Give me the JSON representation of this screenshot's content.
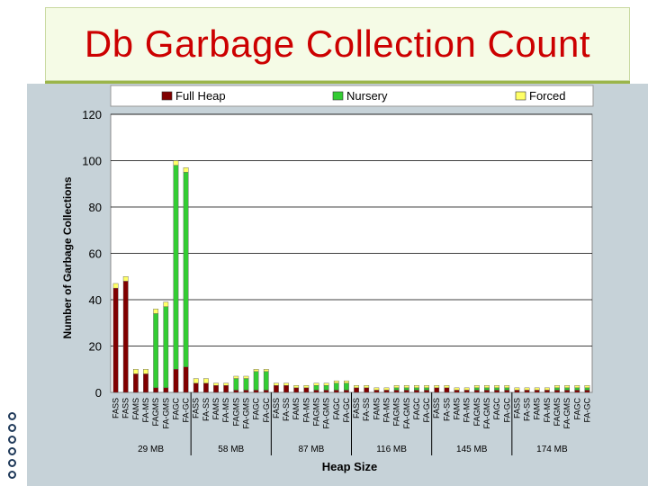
{
  "slide": {
    "title": "Db Garbage Collection Count",
    "colors": {
      "background": "#ffffff",
      "title": "#cc0000",
      "chart_bg": "#c6d2d8",
      "accent": "#9bb54a"
    }
  },
  "chart_data": {
    "type": "bar",
    "stacked": true,
    "title": "",
    "xlabel": "Heap Size",
    "ylabel": "Number of Garbage Collections",
    "ylim": [
      0,
      120
    ],
    "yticks": [
      0,
      20,
      40,
      60,
      80,
      100,
      120
    ],
    "grid": true,
    "legend_position": "top",
    "groups": [
      "29 MB",
      "58 MB",
      "87 MB",
      "116 MB",
      "145 MB",
      "174 MB"
    ],
    "categories": [
      [
        "FASS",
        "FASS",
        "FAMS",
        "FA-MS",
        "FAGMS",
        "FA-GMS",
        "FAGC",
        "FA-GC"
      ],
      [
        "FASS",
        "FA-SS",
        "FAMS",
        "FA-MS",
        "FAGMS",
        "FA-GMS",
        "FAGC",
        "FA-GC"
      ],
      [
        "FASS",
        "FA-SS",
        "FAMS",
        "FA-MS",
        "FAGMS",
        "FA-GMS",
        "FAGC",
        "FA-GC"
      ],
      [
        "FASS",
        "FA-SS",
        "FAMS",
        "FA-MS",
        "FAGMS",
        "FA-GMS",
        "FAGC",
        "FA-GC"
      ],
      [
        "FASS",
        "FA-SS",
        "FAMS",
        "FA-MS",
        "FAGMS",
        "FA-GMS",
        "FAGC",
        "FA-GC"
      ],
      [
        "FASS",
        "FA-SS",
        "FAMS",
        "FA-MS",
        "FAGMS",
        "FA-GMS",
        "FAGC",
        "FA-GC"
      ]
    ],
    "series": [
      {
        "name": "Full Heap",
        "color": "#800000",
        "values": [
          [
            45,
            48,
            8,
            8,
            2,
            2,
            10,
            11
          ],
          [
            4,
            4,
            3,
            3,
            1,
            1,
            1,
            1
          ],
          [
            3,
            3,
            2,
            2,
            1,
            1,
            1,
            1
          ],
          [
            2,
            2,
            1,
            1,
            1,
            1,
            1,
            1
          ],
          [
            2,
            2,
            1,
            1,
            1,
            1,
            1,
            1
          ],
          [
            1,
            1,
            1,
            1,
            1,
            1,
            1,
            1
          ]
        ]
      },
      {
        "name": "Nursery",
        "color": "#33cc33",
        "values": [
          [
            0,
            0,
            0,
            0,
            32,
            35,
            88,
            84
          ],
          [
            0,
            0,
            0,
            0,
            5,
            5,
            8,
            8
          ],
          [
            0,
            0,
            0,
            0,
            2,
            2,
            3,
            3
          ],
          [
            0,
            0,
            0,
            0,
            1,
            1,
            1,
            1
          ],
          [
            0,
            0,
            0,
            0,
            1,
            1,
            1,
            1
          ],
          [
            0,
            0,
            0,
            0,
            1,
            1,
            1,
            1
          ]
        ]
      },
      {
        "name": "Forced",
        "color": "#ffff66",
        "values": [
          [
            2,
            2,
            2,
            2,
            2,
            2,
            2,
            2
          ],
          [
            2,
            2,
            1,
            1,
            1,
            1,
            1,
            1
          ],
          [
            1,
            1,
            1,
            1,
            1,
            1,
            1,
            1
          ],
          [
            1,
            1,
            1,
            1,
            1,
            1,
            1,
            1
          ],
          [
            1,
            1,
            1,
            1,
            1,
            1,
            1,
            1
          ],
          [
            1,
            1,
            1,
            1,
            1,
            1,
            1,
            1
          ]
        ]
      }
    ]
  }
}
